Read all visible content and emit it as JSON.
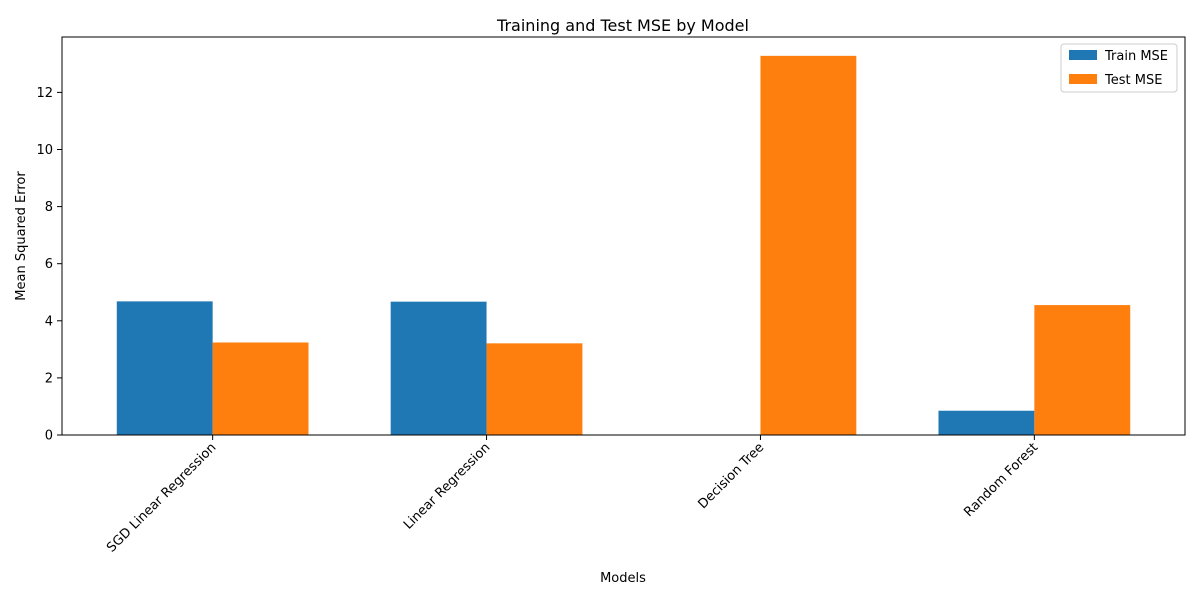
{
  "chart_data": {
    "type": "bar",
    "title": "Training and Test MSE by Model",
    "xlabel": "Models",
    "ylabel": "Mean Squared Error",
    "categories": [
      "SGD Linear Regression",
      "Linear Regression",
      "Decision Tree",
      "Random Forest"
    ],
    "series": [
      {
        "name": "Train MSE",
        "color": "#1f77b4",
        "values": [
          4.68,
          4.67,
          0.0,
          0.85
        ]
      },
      {
        "name": "Test MSE",
        "color": "#ff7f0e",
        "values": [
          3.24,
          3.21,
          13.28,
          4.55
        ]
      }
    ],
    "ylim": [
      0,
      13.94
    ],
    "yticks": [
      0,
      2,
      4,
      6,
      8,
      10,
      12
    ],
    "legend_position": "top-right",
    "grid": false
  }
}
